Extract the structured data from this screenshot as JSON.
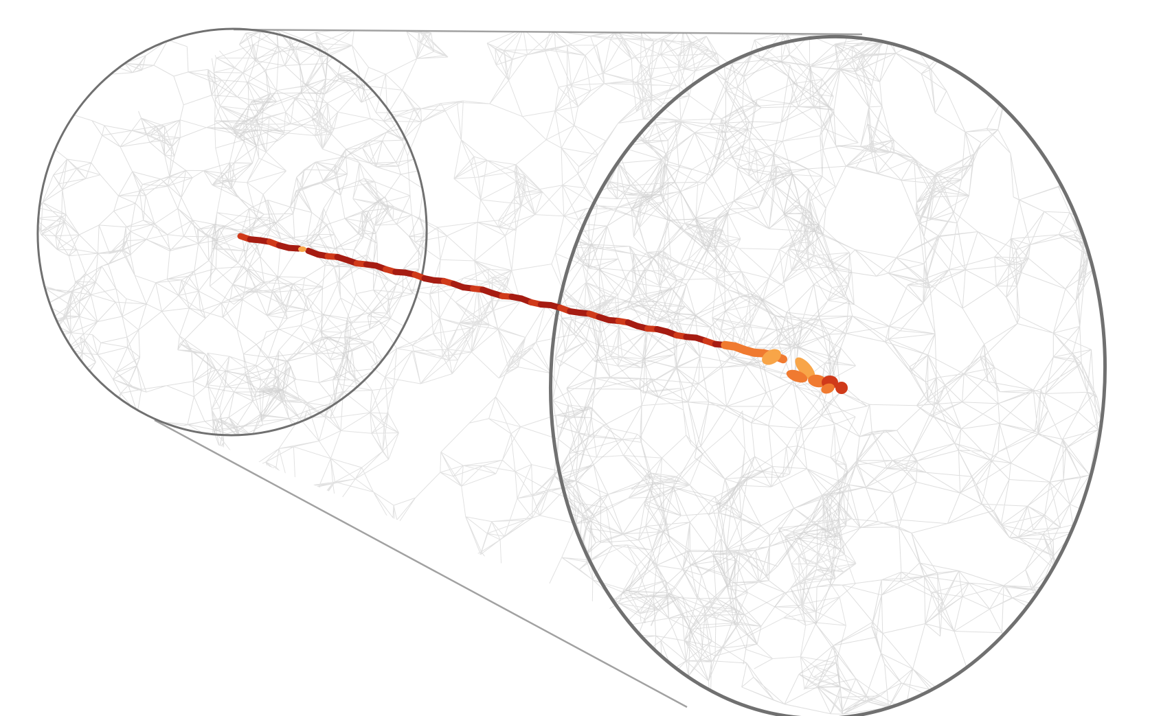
{
  "scene": {
    "object": "cylinder-wireframe-mesh",
    "track": "particle-track",
    "colors": {
      "background": "#ffffff",
      "outline": "#707070",
      "mesh": "#c8c8c8",
      "track_dark": "#a61c12",
      "track_mid": "#d03a1a",
      "track_light": "#f07a30",
      "track_pale": "#f8a548"
    }
  }
}
